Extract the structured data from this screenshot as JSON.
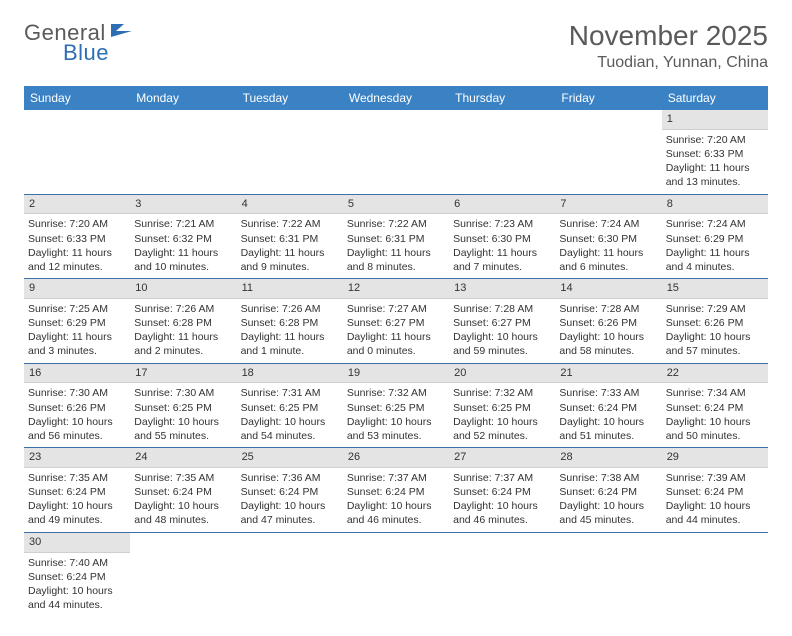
{
  "logo": {
    "general": "General",
    "blue": "Blue"
  },
  "title": "November 2025",
  "location": "Tuodian, Yunnan, China",
  "colors": {
    "header_bg": "#3b82c4",
    "header_text": "#ffffff",
    "date_bar_bg": "#e4e4e4",
    "row_border": "#3b6fa8",
    "text": "#333333",
    "title_text": "#5a5a5a",
    "logo_blue": "#2d6fb5"
  },
  "day_names": [
    "Sunday",
    "Monday",
    "Tuesday",
    "Wednesday",
    "Thursday",
    "Friday",
    "Saturday"
  ],
  "weeks": [
    [
      {
        "date": "",
        "lines": []
      },
      {
        "date": "",
        "lines": []
      },
      {
        "date": "",
        "lines": []
      },
      {
        "date": "",
        "lines": []
      },
      {
        "date": "",
        "lines": []
      },
      {
        "date": "",
        "lines": []
      },
      {
        "date": "1",
        "lines": [
          "Sunrise: 7:20 AM",
          "Sunset: 6:33 PM",
          "Daylight: 11 hours",
          "and 13 minutes."
        ]
      }
    ],
    [
      {
        "date": "2",
        "lines": [
          "Sunrise: 7:20 AM",
          "Sunset: 6:33 PM",
          "Daylight: 11 hours",
          "and 12 minutes."
        ]
      },
      {
        "date": "3",
        "lines": [
          "Sunrise: 7:21 AM",
          "Sunset: 6:32 PM",
          "Daylight: 11 hours",
          "and 10 minutes."
        ]
      },
      {
        "date": "4",
        "lines": [
          "Sunrise: 7:22 AM",
          "Sunset: 6:31 PM",
          "Daylight: 11 hours",
          "and 9 minutes."
        ]
      },
      {
        "date": "5",
        "lines": [
          "Sunrise: 7:22 AM",
          "Sunset: 6:31 PM",
          "Daylight: 11 hours",
          "and 8 minutes."
        ]
      },
      {
        "date": "6",
        "lines": [
          "Sunrise: 7:23 AM",
          "Sunset: 6:30 PM",
          "Daylight: 11 hours",
          "and 7 minutes."
        ]
      },
      {
        "date": "7",
        "lines": [
          "Sunrise: 7:24 AM",
          "Sunset: 6:30 PM",
          "Daylight: 11 hours",
          "and 6 minutes."
        ]
      },
      {
        "date": "8",
        "lines": [
          "Sunrise: 7:24 AM",
          "Sunset: 6:29 PM",
          "Daylight: 11 hours",
          "and 4 minutes."
        ]
      }
    ],
    [
      {
        "date": "9",
        "lines": [
          "Sunrise: 7:25 AM",
          "Sunset: 6:29 PM",
          "Daylight: 11 hours",
          "and 3 minutes."
        ]
      },
      {
        "date": "10",
        "lines": [
          "Sunrise: 7:26 AM",
          "Sunset: 6:28 PM",
          "Daylight: 11 hours",
          "and 2 minutes."
        ]
      },
      {
        "date": "11",
        "lines": [
          "Sunrise: 7:26 AM",
          "Sunset: 6:28 PM",
          "Daylight: 11 hours",
          "and 1 minute."
        ]
      },
      {
        "date": "12",
        "lines": [
          "Sunrise: 7:27 AM",
          "Sunset: 6:27 PM",
          "Daylight: 11 hours",
          "and 0 minutes."
        ]
      },
      {
        "date": "13",
        "lines": [
          "Sunrise: 7:28 AM",
          "Sunset: 6:27 PM",
          "Daylight: 10 hours",
          "and 59 minutes."
        ]
      },
      {
        "date": "14",
        "lines": [
          "Sunrise: 7:28 AM",
          "Sunset: 6:26 PM",
          "Daylight: 10 hours",
          "and 58 minutes."
        ]
      },
      {
        "date": "15",
        "lines": [
          "Sunrise: 7:29 AM",
          "Sunset: 6:26 PM",
          "Daylight: 10 hours",
          "and 57 minutes."
        ]
      }
    ],
    [
      {
        "date": "16",
        "lines": [
          "Sunrise: 7:30 AM",
          "Sunset: 6:26 PM",
          "Daylight: 10 hours",
          "and 56 minutes."
        ]
      },
      {
        "date": "17",
        "lines": [
          "Sunrise: 7:30 AM",
          "Sunset: 6:25 PM",
          "Daylight: 10 hours",
          "and 55 minutes."
        ]
      },
      {
        "date": "18",
        "lines": [
          "Sunrise: 7:31 AM",
          "Sunset: 6:25 PM",
          "Daylight: 10 hours",
          "and 54 minutes."
        ]
      },
      {
        "date": "19",
        "lines": [
          "Sunrise: 7:32 AM",
          "Sunset: 6:25 PM",
          "Daylight: 10 hours",
          "and 53 minutes."
        ]
      },
      {
        "date": "20",
        "lines": [
          "Sunrise: 7:32 AM",
          "Sunset: 6:25 PM",
          "Daylight: 10 hours",
          "and 52 minutes."
        ]
      },
      {
        "date": "21",
        "lines": [
          "Sunrise: 7:33 AM",
          "Sunset: 6:24 PM",
          "Daylight: 10 hours",
          "and 51 minutes."
        ]
      },
      {
        "date": "22",
        "lines": [
          "Sunrise: 7:34 AM",
          "Sunset: 6:24 PM",
          "Daylight: 10 hours",
          "and 50 minutes."
        ]
      }
    ],
    [
      {
        "date": "23",
        "lines": [
          "Sunrise: 7:35 AM",
          "Sunset: 6:24 PM",
          "Daylight: 10 hours",
          "and 49 minutes."
        ]
      },
      {
        "date": "24",
        "lines": [
          "Sunrise: 7:35 AM",
          "Sunset: 6:24 PM",
          "Daylight: 10 hours",
          "and 48 minutes."
        ]
      },
      {
        "date": "25",
        "lines": [
          "Sunrise: 7:36 AM",
          "Sunset: 6:24 PM",
          "Daylight: 10 hours",
          "and 47 minutes."
        ]
      },
      {
        "date": "26",
        "lines": [
          "Sunrise: 7:37 AM",
          "Sunset: 6:24 PM",
          "Daylight: 10 hours",
          "and 46 minutes."
        ]
      },
      {
        "date": "27",
        "lines": [
          "Sunrise: 7:37 AM",
          "Sunset: 6:24 PM",
          "Daylight: 10 hours",
          "and 46 minutes."
        ]
      },
      {
        "date": "28",
        "lines": [
          "Sunrise: 7:38 AM",
          "Sunset: 6:24 PM",
          "Daylight: 10 hours",
          "and 45 minutes."
        ]
      },
      {
        "date": "29",
        "lines": [
          "Sunrise: 7:39 AM",
          "Sunset: 6:24 PM",
          "Daylight: 10 hours",
          "and 44 minutes."
        ]
      }
    ],
    [
      {
        "date": "30",
        "lines": [
          "Sunrise: 7:40 AM",
          "Sunset: 6:24 PM",
          "Daylight: 10 hours",
          "and 44 minutes."
        ]
      },
      {
        "date": "",
        "lines": []
      },
      {
        "date": "",
        "lines": []
      },
      {
        "date": "",
        "lines": []
      },
      {
        "date": "",
        "lines": []
      },
      {
        "date": "",
        "lines": []
      },
      {
        "date": "",
        "lines": []
      }
    ]
  ]
}
